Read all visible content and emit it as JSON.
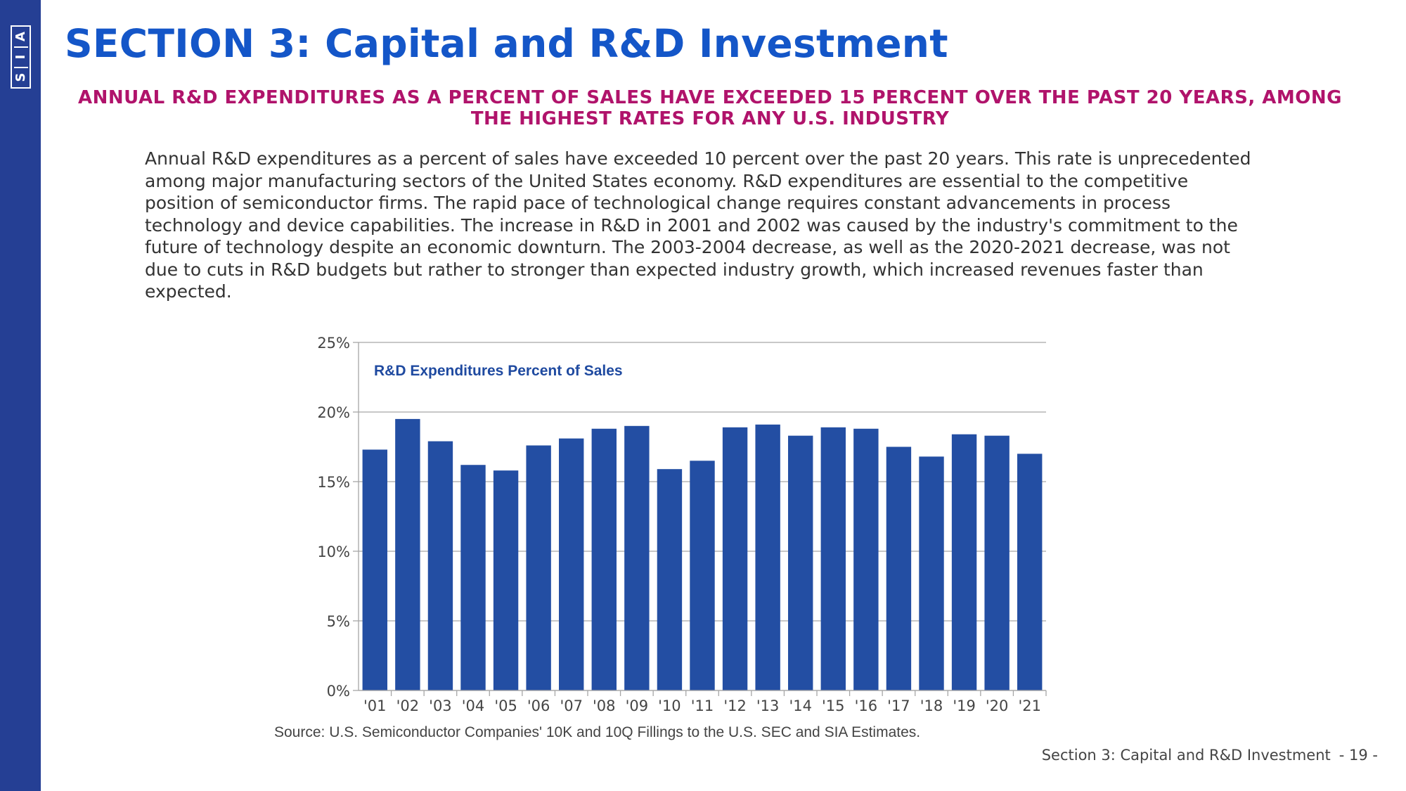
{
  "logo": {
    "letters": [
      "S",
      "I",
      "A"
    ]
  },
  "header": {
    "title": "SECTION 3: Capital and R&D Investment",
    "subtitle": "ANNUAL R&D EXPENDITURES AS A PERCENT OF SALES HAVE EXCEEDED 15 PERCENT OVER THE PAST 20 YEARS, AMONG THE HIGHEST RATES FOR ANY U.S. INDUSTRY"
  },
  "body": {
    "paragraph": "Annual R&D expenditures as a percent of sales have exceeded 10 percent over the past 20 years. This rate is unprecedented among major manufacturing sectors of the United States economy. R&D expenditures are essential to the competitive position of semiconductor firms. The rapid pace of technological change requires constant advancements in process technology and device capabilities. The increase in R&D in 2001 and 2002 was caused by the industry's commitment to the future of technology despite an economic downturn. The 2003-2004 decrease, as well as the 2020-2021 decrease, was not due to cuts in R&D budgets but rather to stronger than expected industry growth, which increased revenues faster than expected."
  },
  "chart_data": {
    "type": "bar",
    "title": "R&D Expenditures Percent of Sales",
    "categories": [
      "'01",
      "'02",
      "'03",
      "'04",
      "'05",
      "'06",
      "'07",
      "'08",
      "'09",
      "'10",
      "'11",
      "'12",
      "'13",
      "'14",
      "'15",
      "'16",
      "'17",
      "'18",
      "'19",
      "'20",
      "'21"
    ],
    "values": [
      17.3,
      19.5,
      17.9,
      16.2,
      15.8,
      17.6,
      18.1,
      18.8,
      19.0,
      15.9,
      16.5,
      18.9,
      19.1,
      18.3,
      18.9,
      18.8,
      17.5,
      16.8,
      18.4,
      18.3,
      17.0
    ],
    "yticks": [
      0,
      5,
      10,
      15,
      20,
      25
    ],
    "ytick_labels": [
      "0%",
      "5%",
      "10%",
      "15%",
      "20%",
      "25%"
    ],
    "ylim": [
      0,
      25
    ],
    "xlabel": "",
    "ylabel": "",
    "grid": true,
    "legend": "none",
    "bar_color": "#234ea3",
    "title_color": "#1f4aa0"
  },
  "source": "Source: U.S. Semiconductor Companies' 10K and 10Q Fillings to the U.S. SEC and SIA Estimates.",
  "footer": {
    "section": "Section 3: Capital and R&D Investment",
    "page": "- 19 -"
  }
}
